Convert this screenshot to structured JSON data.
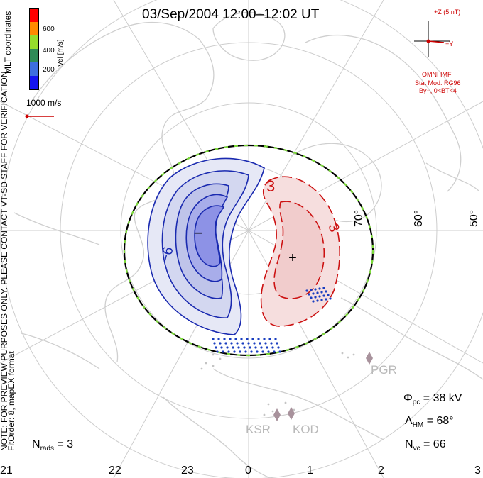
{
  "title": "03/Sep/2004 12:00–12:02 UT",
  "side_text": {
    "coords": "MLT coordinates",
    "note": "NOTE: FOR PREVIEW PURPOSES ONLY. PLEASE CONTACT VT-SD STAFF FOR VERIFICATION.",
    "fit": "FitOrder: 8, mapEX format"
  },
  "colorbar": {
    "label": "Vel [m/s]",
    "ticks": [
      "600",
      "400",
      "200"
    ],
    "colors": [
      "#ff0000",
      "#ff8a00",
      "#96dd2c",
      "#2e8b57",
      "#3d6ee0",
      "#1414f0"
    ]
  },
  "vector_scale": "1000 m/s",
  "imf": {
    "z_label": "+Z (5 nT)",
    "y_label": "+Y",
    "source": "OMNI IMF",
    "model": "Stat Mod: RG96",
    "conditions": "By−, 0<BT<4"
  },
  "grid_labels": {
    "lat70": "70°",
    "lat60": "60°",
    "lat50": "50°"
  },
  "contour_labels": {
    "neg": "−6",
    "pos1": "3",
    "pos2": "3"
  },
  "cell_markers": {
    "neg": "−",
    "pos": "+"
  },
  "stations": [
    "PGR",
    "KSR",
    "KOD"
  ],
  "stats": {
    "phi_sym": "Φ",
    "phi_sub": "pc",
    "phi_val": " = 38 kV",
    "lam_sym": "Λ",
    "lam_sub": "HM",
    "lam_val": " = 68°",
    "nvc_sym": "N",
    "nvc_sub": "vc",
    "nvc_val": " = 66",
    "nrads_sym": "N",
    "nrads_sub": "rads",
    "nrads_val": " = 3"
  },
  "mlt_axis": [
    "21",
    "22",
    "23",
    "0",
    "1",
    "2",
    "3"
  ],
  "colors": {
    "negative": "#1a2ab0",
    "positive": "#cc1111",
    "hmb": "#7ddc3a",
    "grid": "#c8c8c8",
    "coast": "#cfcfcf"
  }
}
